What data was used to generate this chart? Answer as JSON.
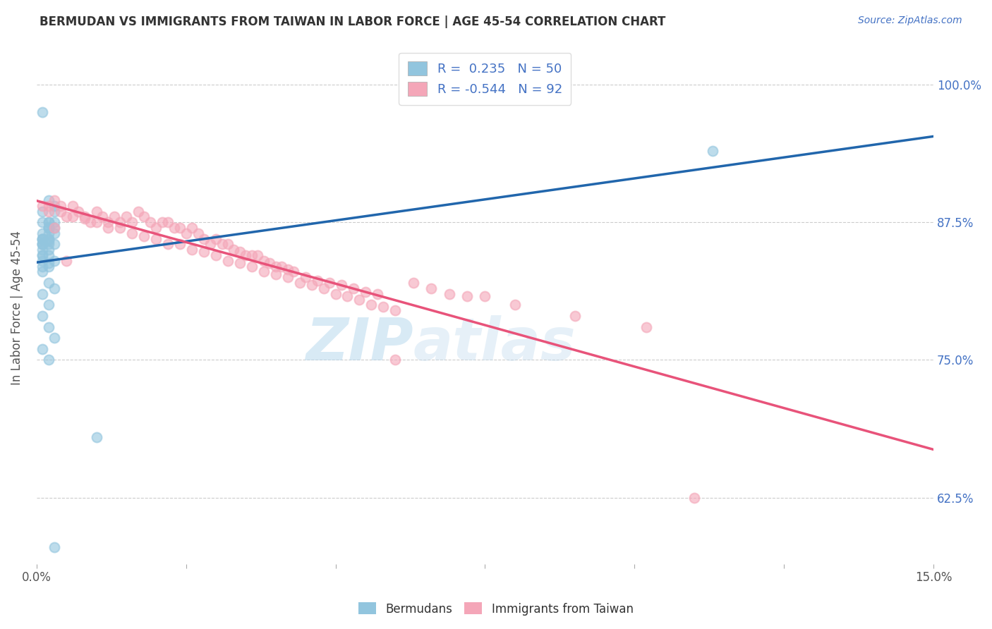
{
  "title": "BERMUDAN VS IMMIGRANTS FROM TAIWAN IN LABOR FORCE | AGE 45-54 CORRELATION CHART",
  "source": "Source: ZipAtlas.com",
  "ylabel": "In Labor Force | Age 45-54",
  "ytick_labels": [
    "62.5%",
    "75.0%",
    "87.5%",
    "100.0%"
  ],
  "ytick_values": [
    0.625,
    0.75,
    0.875,
    1.0
  ],
  "xlim": [
    0.0,
    0.15
  ],
  "ylim": [
    0.565,
    1.03
  ],
  "legend_R1": "R =  0.235",
  "legend_N1": "N = 50",
  "legend_R2": "R = -0.544",
  "legend_N2": "N = 92",
  "blue_color": "#92c5de",
  "pink_color": "#f4a6b8",
  "blue_line_color": "#2166ac",
  "pink_line_color": "#e8537a",
  "watermark_zip": "ZIP",
  "watermark_atlas": "atlas",
  "blue_scatter_x": [
    0.001,
    0.002,
    0.001,
    0.002,
    0.003,
    0.001,
    0.002,
    0.001,
    0.003,
    0.002,
    0.001,
    0.002,
    0.001,
    0.003,
    0.002,
    0.001,
    0.002,
    0.003,
    0.001,
    0.002,
    0.001,
    0.002,
    0.001,
    0.003,
    0.002,
    0.001,
    0.002,
    0.001,
    0.002,
    0.003,
    0.001,
    0.002,
    0.001,
    0.002,
    0.003,
    0.001,
    0.002,
    0.001,
    0.002,
    0.003,
    0.001,
    0.002,
    0.001,
    0.002,
    0.003,
    0.001,
    0.002,
    0.01,
    0.113,
    0.003
  ],
  "blue_scatter_y": [
    0.975,
    0.895,
    0.885,
    0.875,
    0.885,
    0.865,
    0.875,
    0.875,
    0.89,
    0.87,
    0.86,
    0.87,
    0.86,
    0.875,
    0.87,
    0.86,
    0.865,
    0.87,
    0.855,
    0.86,
    0.855,
    0.86,
    0.855,
    0.865,
    0.855,
    0.85,
    0.858,
    0.845,
    0.85,
    0.855,
    0.845,
    0.845,
    0.84,
    0.838,
    0.84,
    0.835,
    0.835,
    0.83,
    0.82,
    0.815,
    0.81,
    0.8,
    0.79,
    0.78,
    0.77,
    0.76,
    0.75,
    0.68,
    0.94,
    0.58
  ],
  "pink_scatter_x": [
    0.001,
    0.002,
    0.003,
    0.004,
    0.005,
    0.006,
    0.007,
    0.008,
    0.009,
    0.01,
    0.011,
    0.012,
    0.013,
    0.014,
    0.015,
    0.016,
    0.017,
    0.018,
    0.019,
    0.02,
    0.021,
    0.022,
    0.023,
    0.024,
    0.025,
    0.026,
    0.027,
    0.028,
    0.029,
    0.03,
    0.031,
    0.032,
    0.033,
    0.034,
    0.035,
    0.036,
    0.037,
    0.038,
    0.039,
    0.04,
    0.041,
    0.042,
    0.043,
    0.045,
    0.047,
    0.049,
    0.051,
    0.053,
    0.055,
    0.057,
    0.002,
    0.004,
    0.006,
    0.008,
    0.01,
    0.012,
    0.014,
    0.016,
    0.018,
    0.02,
    0.022,
    0.024,
    0.026,
    0.028,
    0.03,
    0.032,
    0.034,
    0.036,
    0.038,
    0.04,
    0.042,
    0.044,
    0.046,
    0.048,
    0.05,
    0.052,
    0.054,
    0.056,
    0.058,
    0.06,
    0.063,
    0.066,
    0.069,
    0.072,
    0.075,
    0.08,
    0.09,
    0.102,
    0.003,
    0.005,
    0.06,
    0.11
  ],
  "pink_scatter_y": [
    0.89,
    0.885,
    0.895,
    0.89,
    0.88,
    0.89,
    0.885,
    0.88,
    0.875,
    0.885,
    0.88,
    0.875,
    0.88,
    0.875,
    0.88,
    0.875,
    0.885,
    0.88,
    0.875,
    0.87,
    0.875,
    0.875,
    0.87,
    0.87,
    0.865,
    0.87,
    0.865,
    0.86,
    0.855,
    0.86,
    0.855,
    0.855,
    0.85,
    0.848,
    0.845,
    0.845,
    0.845,
    0.84,
    0.838,
    0.835,
    0.835,
    0.832,
    0.83,
    0.825,
    0.822,
    0.82,
    0.818,
    0.815,
    0.812,
    0.81,
    0.89,
    0.885,
    0.88,
    0.878,
    0.875,
    0.87,
    0.87,
    0.865,
    0.862,
    0.86,
    0.855,
    0.855,
    0.85,
    0.848,
    0.845,
    0.84,
    0.838,
    0.835,
    0.83,
    0.828,
    0.825,
    0.82,
    0.818,
    0.815,
    0.81,
    0.808,
    0.805,
    0.8,
    0.798,
    0.795,
    0.82,
    0.815,
    0.81,
    0.808,
    0.808,
    0.8,
    0.79,
    0.78,
    0.87,
    0.84,
    0.75,
    0.625
  ]
}
